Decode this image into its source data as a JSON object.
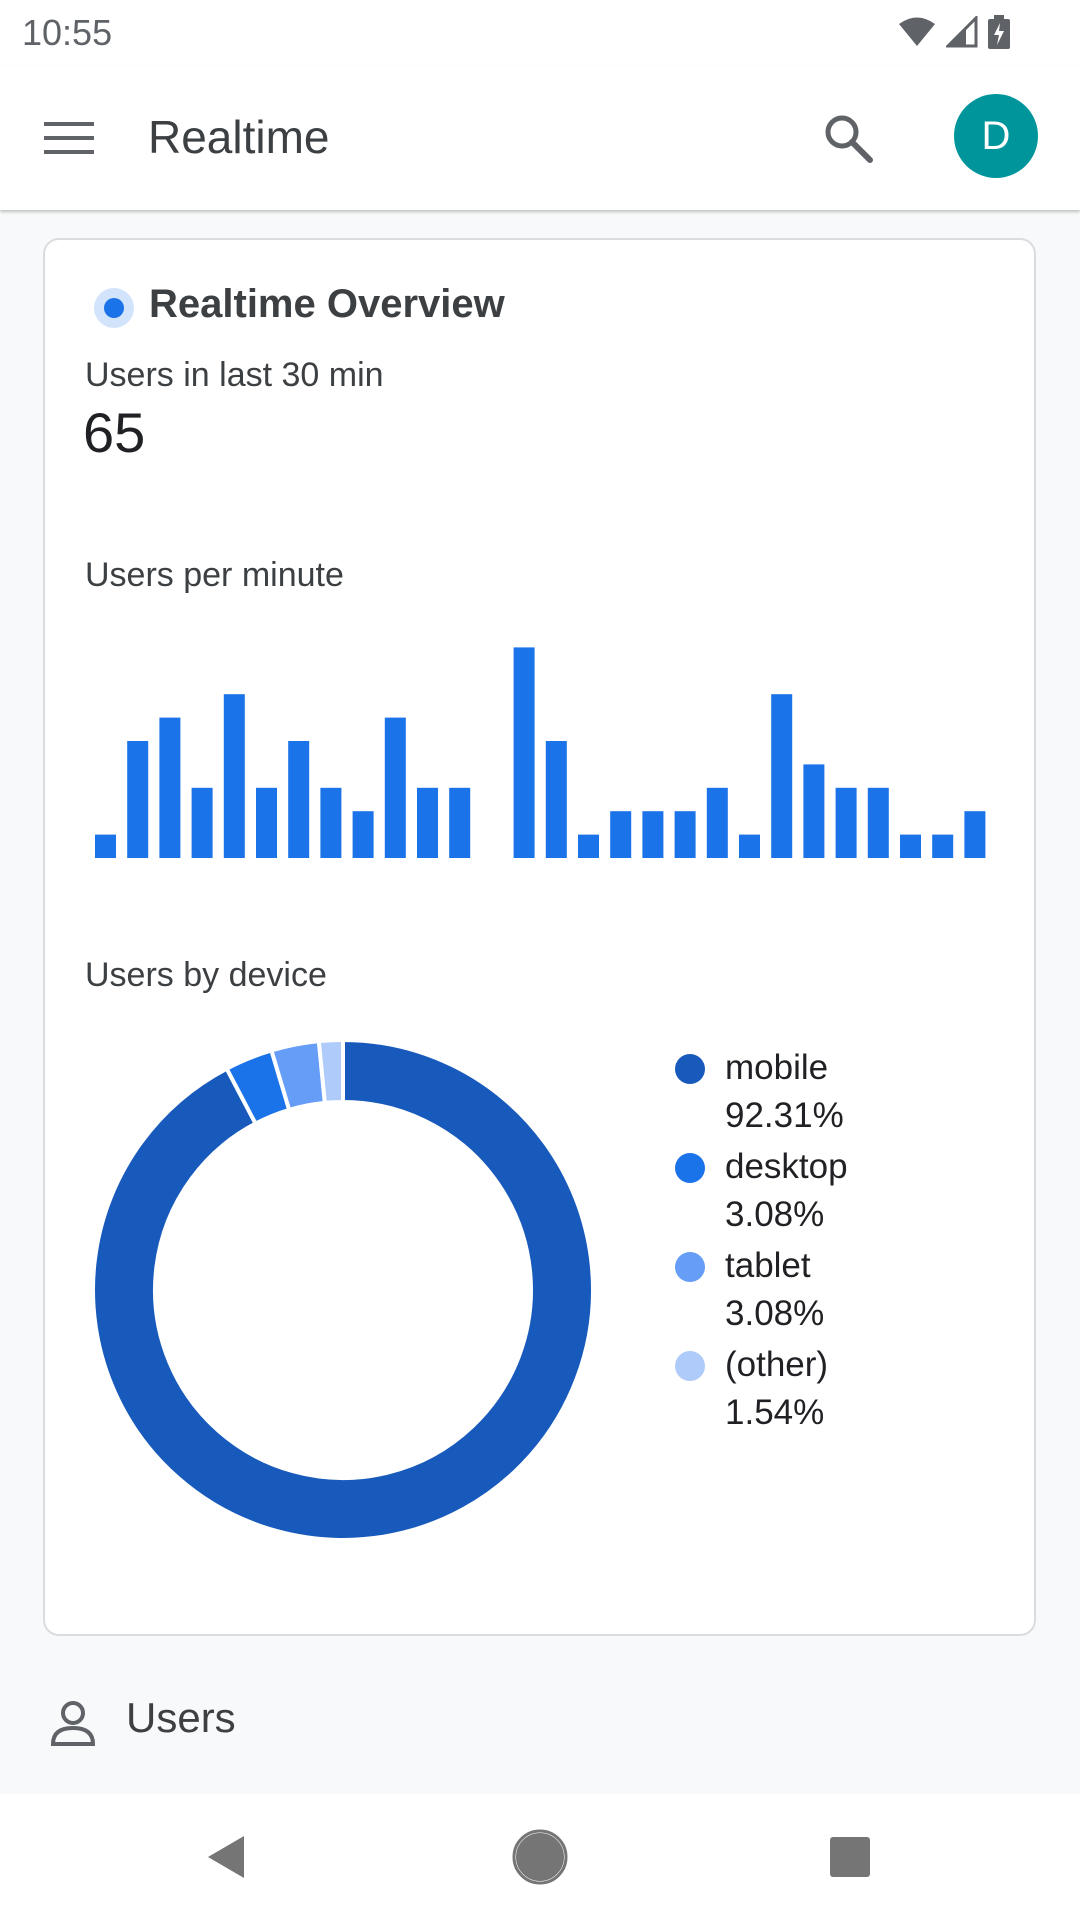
{
  "status_bar": {
    "time": "10:55"
  },
  "app_bar": {
    "title": "Realtime",
    "avatar_letter": "D",
    "avatar_color": "#00959b"
  },
  "card": {
    "title": "Realtime Overview",
    "metric_label": "Users in last 30 min",
    "metric_value": "65",
    "bar_section_label": "Users per minute",
    "device_section_label": "Users by device"
  },
  "chart_data": [
    {
      "type": "bar",
      "title": "Users per minute",
      "values": [
        1,
        5,
        6,
        3,
        7,
        3,
        5,
        3,
        2,
        6,
        3,
        3,
        0,
        9,
        5,
        1,
        2,
        2,
        2,
        3,
        1,
        7,
        4,
        3,
        3,
        1,
        1,
        2
      ],
      "color": "#1a73e8",
      "grid": false
    },
    {
      "type": "pie",
      "title": "Users by device",
      "categories": [
        "mobile",
        "desktop",
        "tablet",
        "(other)"
      ],
      "values": [
        92.31,
        3.08,
        3.08,
        1.54
      ],
      "labels": [
        "92.31%",
        "3.08%",
        "3.08%",
        "1.54%"
      ],
      "colors": [
        "#185abc",
        "#1a73e8",
        "#669df6",
        "#aecbfa"
      ],
      "legend": "right"
    }
  ],
  "users_section": {
    "label": "Users"
  },
  "icons": {
    "menu": "menu-icon",
    "search": "search-icon",
    "users": "person-icon",
    "back": "back-icon",
    "home": "home-icon",
    "recents": "recents-icon"
  }
}
